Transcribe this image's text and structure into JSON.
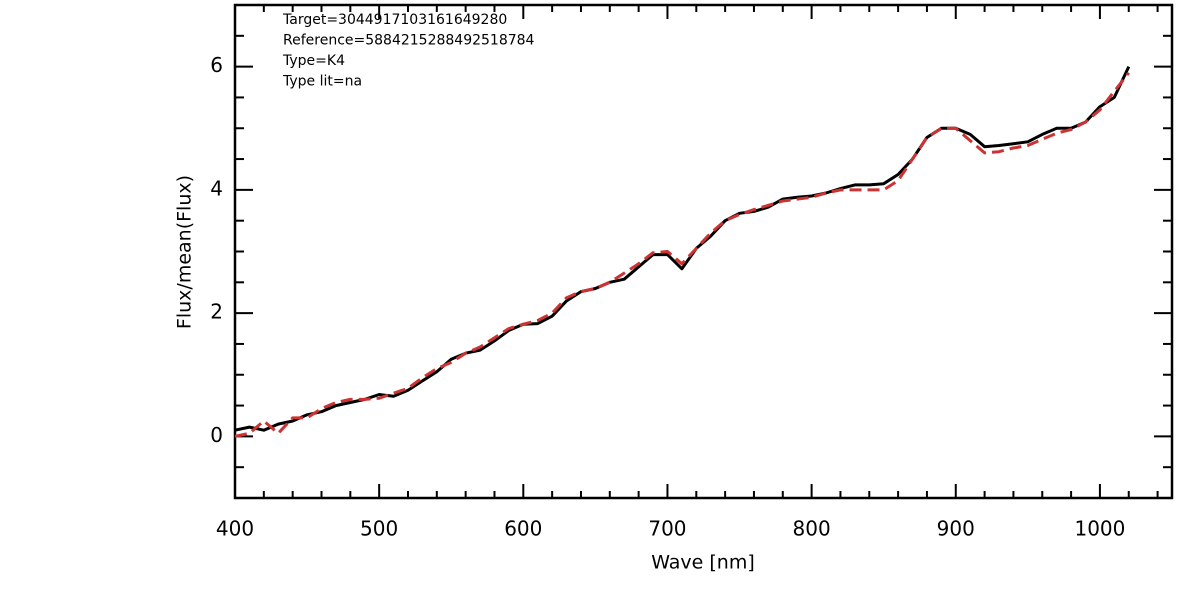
{
  "chart_data": {
    "type": "line",
    "annotations": [
      "Target=3044917103161649280",
      "Reference=5884215288492518784",
      "Type=K4",
      "Type lit=na"
    ],
    "xlabel": "Wave [nm]",
    "ylabel": "Flux/mean(Flux)",
    "x": [
      400,
      410,
      420,
      430,
      440,
      450,
      460,
      470,
      480,
      490,
      500,
      510,
      520,
      530,
      540,
      550,
      560,
      570,
      580,
      590,
      600,
      610,
      620,
      630,
      640,
      650,
      660,
      670,
      680,
      690,
      700,
      710,
      720,
      730,
      740,
      750,
      760,
      770,
      780,
      790,
      800,
      810,
      820,
      830,
      840,
      850,
      860,
      870,
      880,
      890,
      900,
      910,
      920,
      930,
      940,
      950,
      960,
      970,
      980,
      990,
      1000,
      1010,
      1020
    ],
    "series": [
      {
        "color": "#000000",
        "dash": false,
        "values": [
          0.1,
          0.15,
          0.1,
          0.2,
          0.25,
          0.35,
          0.4,
          0.5,
          0.55,
          0.6,
          0.68,
          0.65,
          0.75,
          0.9,
          1.05,
          1.25,
          1.35,
          1.4,
          1.55,
          1.72,
          1.82,
          1.83,
          1.95,
          2.2,
          2.35,
          2.4,
          2.5,
          2.55,
          2.75,
          2.95,
          2.95,
          2.72,
          3.05,
          3.25,
          3.5,
          3.62,
          3.65,
          3.72,
          3.85,
          3.88,
          3.9,
          3.95,
          4.02,
          4.08,
          4.08,
          4.1,
          4.25,
          4.5,
          4.85,
          5.0,
          5.0,
          4.9,
          4.7,
          4.72,
          4.75,
          4.78,
          4.9,
          5.0,
          5.0,
          5.1,
          5.35,
          5.5,
          6.0
        ]
      },
      {
        "color": "#cc3333",
        "dash": true,
        "values": [
          0.0,
          0.05,
          0.25,
          0.05,
          0.3,
          0.3,
          0.45,
          0.55,
          0.6,
          0.6,
          0.62,
          0.7,
          0.78,
          0.95,
          1.1,
          1.2,
          1.35,
          1.45,
          1.6,
          1.75,
          1.82,
          1.88,
          2.0,
          2.25,
          2.35,
          2.4,
          2.5,
          2.65,
          2.8,
          2.98,
          3.0,
          2.8,
          3.05,
          3.3,
          3.5,
          3.6,
          3.68,
          3.75,
          3.82,
          3.85,
          3.88,
          3.95,
          4.0,
          4.0,
          4.0,
          4.0,
          4.15,
          4.5,
          4.85,
          5.0,
          5.0,
          4.8,
          4.6,
          4.62,
          4.68,
          4.72,
          4.82,
          4.92,
          4.98,
          5.1,
          5.3,
          5.6,
          5.9
        ]
      }
    ],
    "xlim": [
      400,
      1050
    ],
    "xticks": [
      400,
      500,
      600,
      700,
      800,
      900,
      1000
    ],
    "xminorticks": [
      420,
      440,
      460,
      480,
      520,
      540,
      560,
      580,
      620,
      640,
      660,
      680,
      720,
      740,
      760,
      780,
      820,
      840,
      860,
      880,
      920,
      940,
      960,
      980,
      1020,
      1040
    ],
    "ylim": [
      -1,
      7
    ],
    "yticks": [
      0,
      2,
      4,
      6
    ],
    "yminorticks": [
      -0.5,
      0.5,
      1,
      1.5,
      2.5,
      3,
      3.5,
      4.5,
      5,
      5.5,
      6.5
    ]
  }
}
